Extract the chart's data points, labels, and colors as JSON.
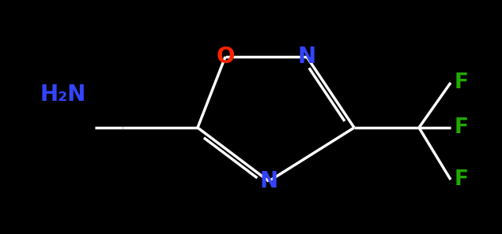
{
  "background_color": "#000000",
  "bond_color": "#ffffff",
  "figsize": [
    6.35,
    2.97
  ],
  "dpi": 100,
  "font_size": 20,
  "lw": 2.5,
  "colors": {
    "O": "#ff2200",
    "N": "#3344ff",
    "F": "#22aa00",
    "bond": "#ffffff"
  },
  "xlim": [
    0,
    6.35
  ],
  "ylim": [
    0,
    2.97
  ]
}
